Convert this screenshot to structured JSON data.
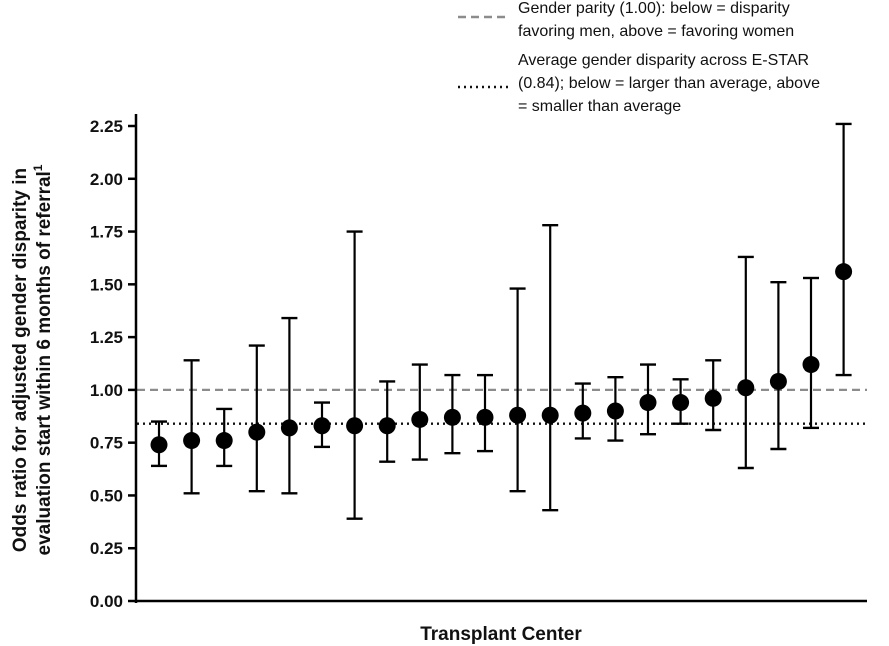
{
  "chart_data": {
    "type": "scatter",
    "subtype": "point-with-error-bars",
    "xlabel": "Transplant Center",
    "ylabel_line1": "Odds ratio for adjusted gender disparity in",
    "ylabel_line2": "evaluation start within 6 months of referral",
    "ylabel_superscript": "1",
    "ylim": [
      0,
      2.25
    ],
    "yticks": [
      {
        "value": 0.0,
        "label": "0.00"
      },
      {
        "value": 0.25,
        "label": "0.25"
      },
      {
        "value": 0.5,
        "label": "0.50"
      },
      {
        "value": 0.75,
        "label": "0.75"
      },
      {
        "value": 1.0,
        "label": "1.00"
      },
      {
        "value": 1.25,
        "label": "1.25"
      },
      {
        "value": 1.5,
        "label": "1.50"
      },
      {
        "value": 1.75,
        "label": "1.75"
      },
      {
        "value": 2.0,
        "label": "2.00"
      },
      {
        "value": 2.25,
        "label": "2.25"
      }
    ],
    "points": [
      {
        "center": 1,
        "or": 0.74,
        "lower": 0.64,
        "upper": 0.85
      },
      {
        "center": 2,
        "or": 0.76,
        "lower": 0.51,
        "upper": 1.14
      },
      {
        "center": 3,
        "or": 0.76,
        "lower": 0.64,
        "upper": 0.91
      },
      {
        "center": 4,
        "or": 0.8,
        "lower": 0.52,
        "upper": 1.21
      },
      {
        "center": 5,
        "or": 0.82,
        "lower": 0.51,
        "upper": 1.34
      },
      {
        "center": 6,
        "or": 0.83,
        "lower": 0.73,
        "upper": 0.94
      },
      {
        "center": 7,
        "or": 0.83,
        "lower": 0.39,
        "upper": 1.75
      },
      {
        "center": 8,
        "or": 0.83,
        "lower": 0.66,
        "upper": 1.04
      },
      {
        "center": 9,
        "or": 0.86,
        "lower": 0.67,
        "upper": 1.12
      },
      {
        "center": 10,
        "or": 0.87,
        "lower": 0.7,
        "upper": 1.07
      },
      {
        "center": 11,
        "or": 0.87,
        "lower": 0.71,
        "upper": 1.07
      },
      {
        "center": 12,
        "or": 0.88,
        "lower": 0.52,
        "upper": 1.48
      },
      {
        "center": 13,
        "or": 0.88,
        "lower": 0.43,
        "upper": 1.78
      },
      {
        "center": 14,
        "or": 0.89,
        "lower": 0.77,
        "upper": 1.03
      },
      {
        "center": 15,
        "or": 0.9,
        "lower": 0.76,
        "upper": 1.06
      },
      {
        "center": 16,
        "or": 0.94,
        "lower": 0.79,
        "upper": 1.12
      },
      {
        "center": 17,
        "or": 0.94,
        "lower": 0.84,
        "upper": 1.05
      },
      {
        "center": 18,
        "or": 0.96,
        "lower": 0.81,
        "upper": 1.14
      },
      {
        "center": 19,
        "or": 1.01,
        "lower": 0.63,
        "upper": 1.63
      },
      {
        "center": 20,
        "or": 1.04,
        "lower": 0.72,
        "upper": 1.51
      },
      {
        "center": 21,
        "or": 1.12,
        "lower": 0.82,
        "upper": 1.53
      },
      {
        "center": 22,
        "or": 1.56,
        "lower": 1.07,
        "upper": 2.26
      }
    ],
    "reference_lines": [
      {
        "name": "gender-parity",
        "value": 1.0,
        "style": "dashed",
        "color": "#8c8c8c",
        "label_lines": [
          "Gender parity (1.00): below = disparity",
          "favoring men, above = favoring women"
        ]
      },
      {
        "name": "average-disparity",
        "value": 0.84,
        "style": "dotted",
        "color": "#111111",
        "label_lines": [
          "Average gender disparity across E-STAR",
          "(0.84); below = larger than average, above",
          "= smaller than average"
        ]
      }
    ],
    "legend_position": "top-right",
    "marker_color": "#000000"
  }
}
